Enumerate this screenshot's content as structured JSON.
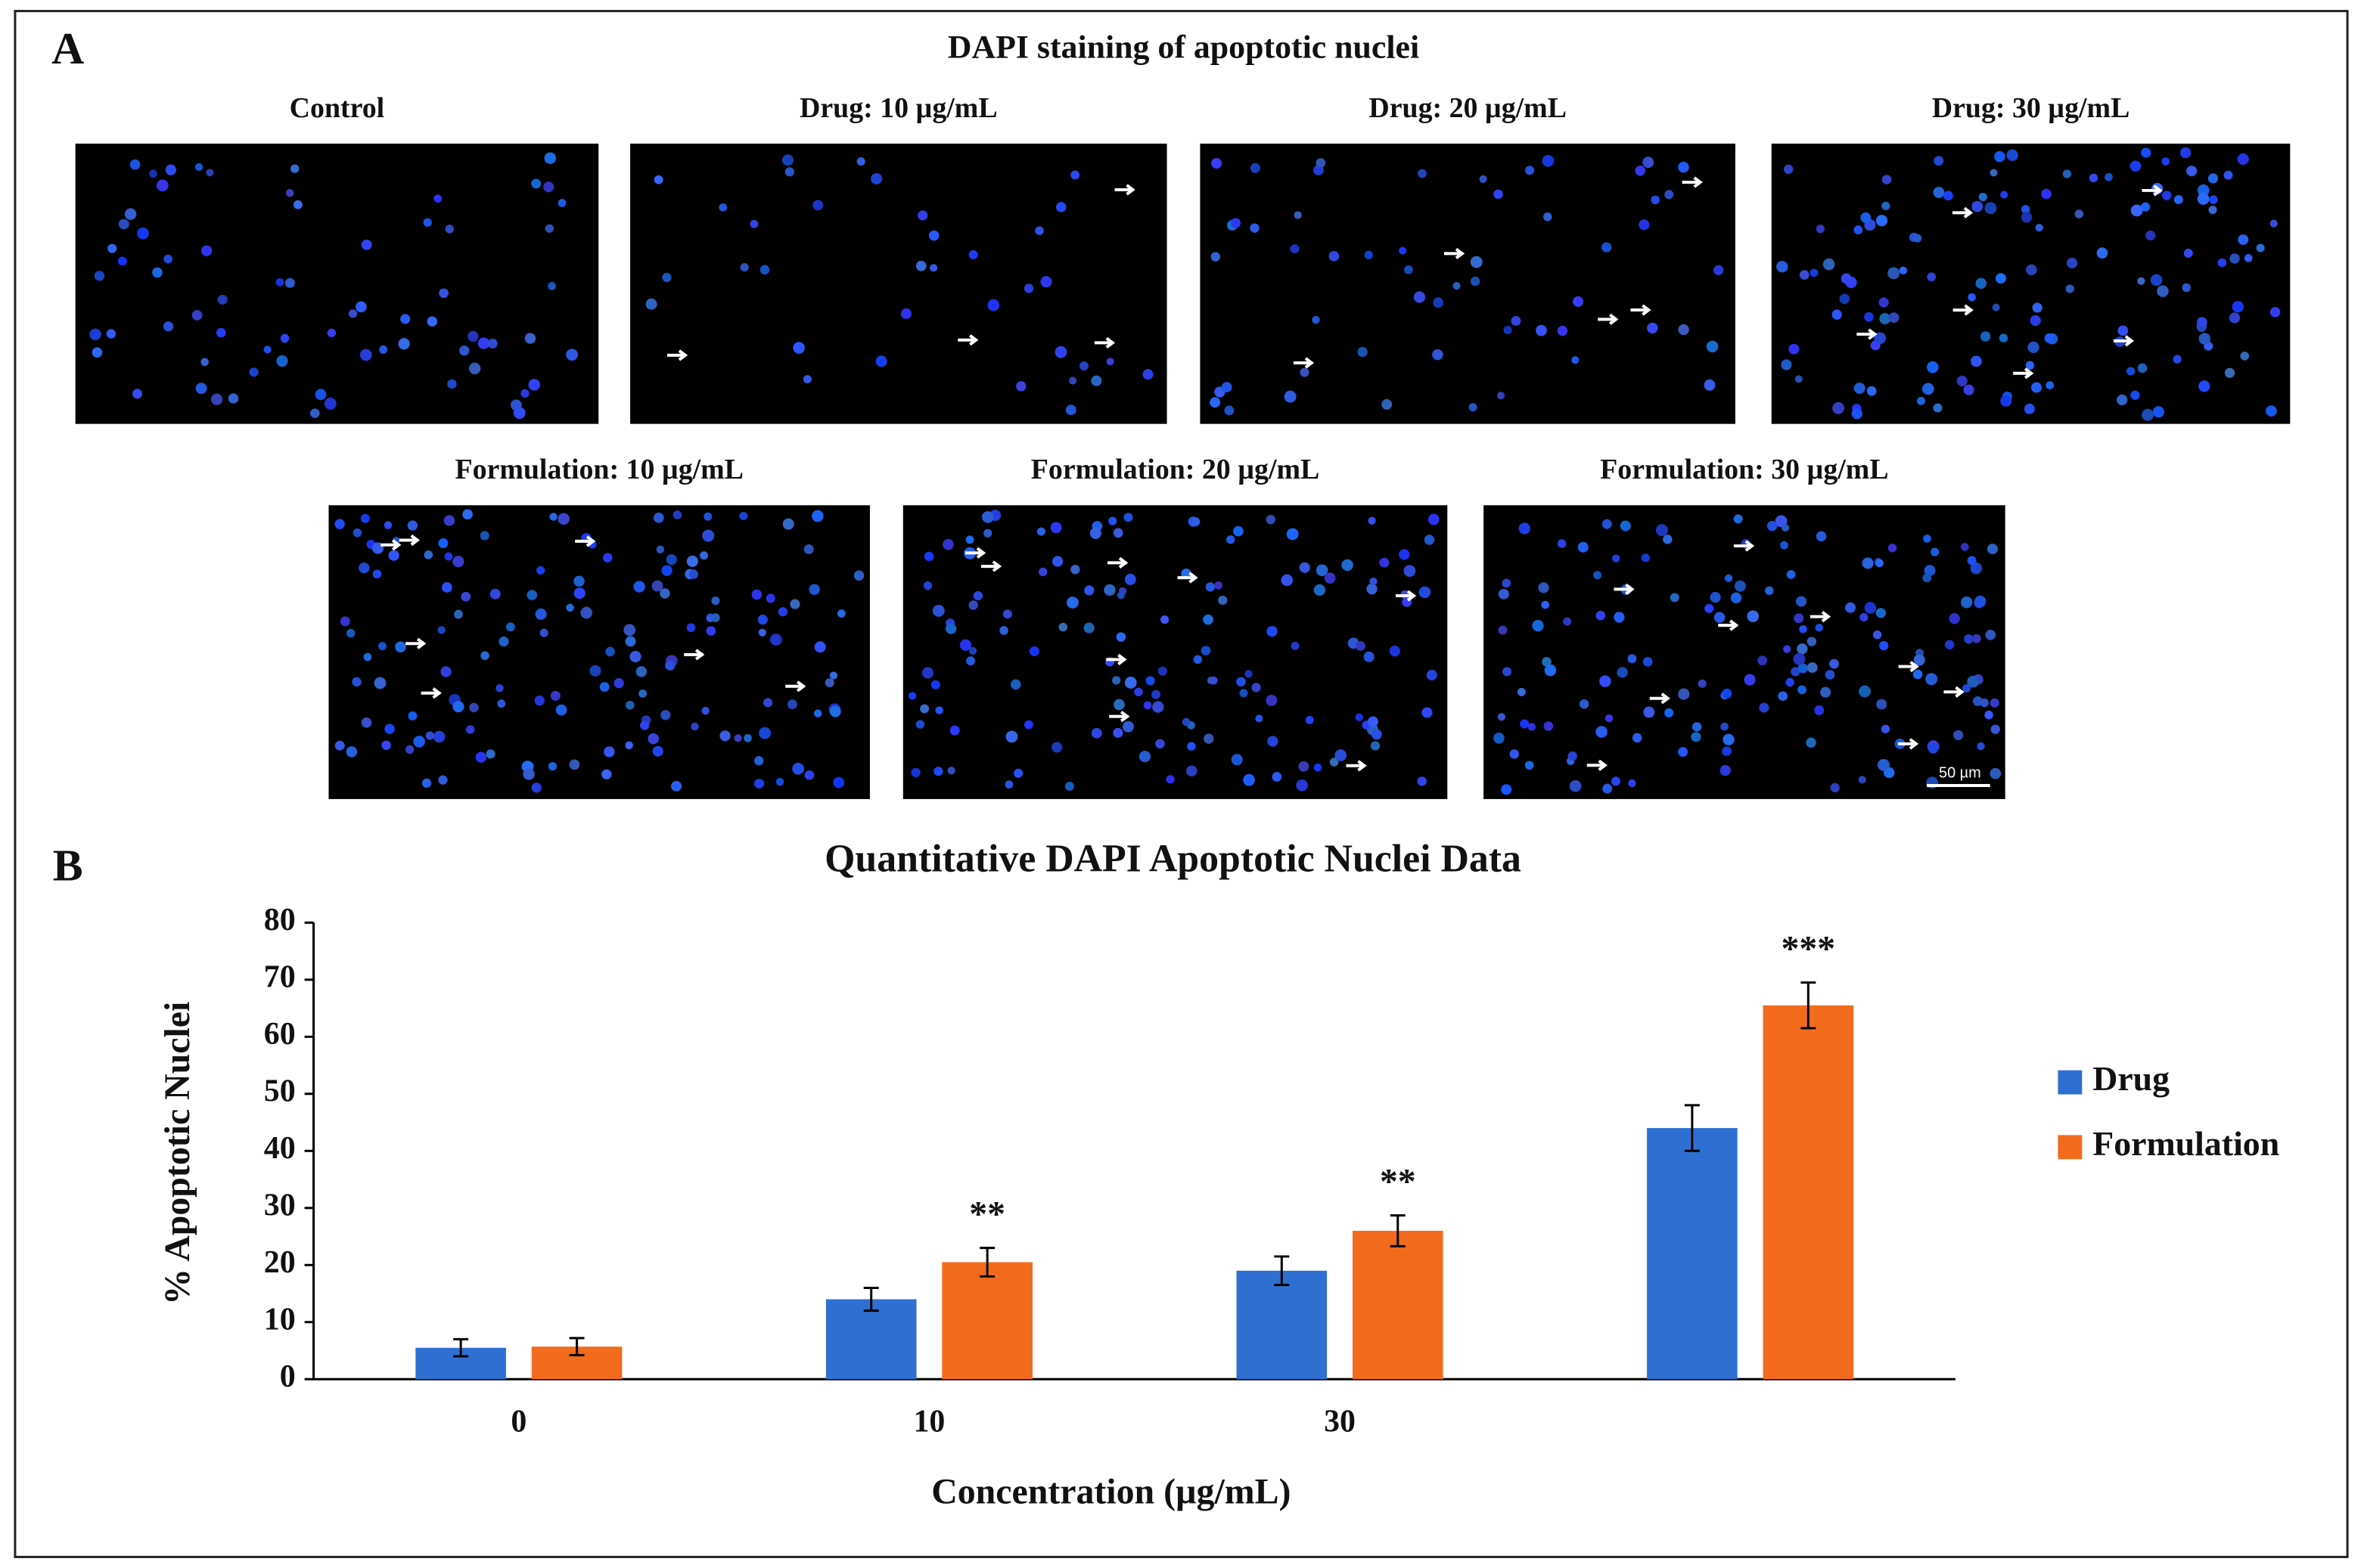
{
  "figure": {
    "panel_a_label": "A",
    "panel_a_title": "DAPI staining of apoptotic nuclei",
    "image_labels": [
      "Control",
      "Drug: 10 µg/mL",
      "Drug: 20 µg/mL",
      "Drug: 30 µg/mL",
      "Formulation: 10 µg/mL",
      "Formulation: 20 µg/mL",
      "Formulation: 30 µg/mL"
    ],
    "scale_bar": "50 µm",
    "panel_b_label": "B"
  },
  "chart_data": {
    "type": "bar",
    "title": "Quantitative DAPI Apoptotic Nuclei Data",
    "x_label": "Concentration (µg/mL)",
    "y_label": "% Apoptotic Nuclei",
    "categories": [
      "0",
      "10",
      "30",
      null
    ],
    "series": [
      {
        "name": "Drug",
        "color": "#2f6fd2",
        "values": [
          5.5,
          14,
          19,
          44
        ],
        "errors": [
          1.5,
          2,
          2.5,
          4
        ]
      },
      {
        "name": "Formulation",
        "color": "#f26b1d",
        "values": [
          5.7,
          20.5,
          26,
          65.5
        ],
        "errors": [
          1.5,
          2.5,
          2.7,
          4
        ]
      }
    ],
    "annotations": [
      null,
      "**",
      "**",
      "***"
    ],
    "ylim": [
      0,
      80
    ],
    "yticks": [
      0,
      10,
      20,
      30,
      40,
      50,
      60,
      70,
      80
    ],
    "legend": "right"
  }
}
